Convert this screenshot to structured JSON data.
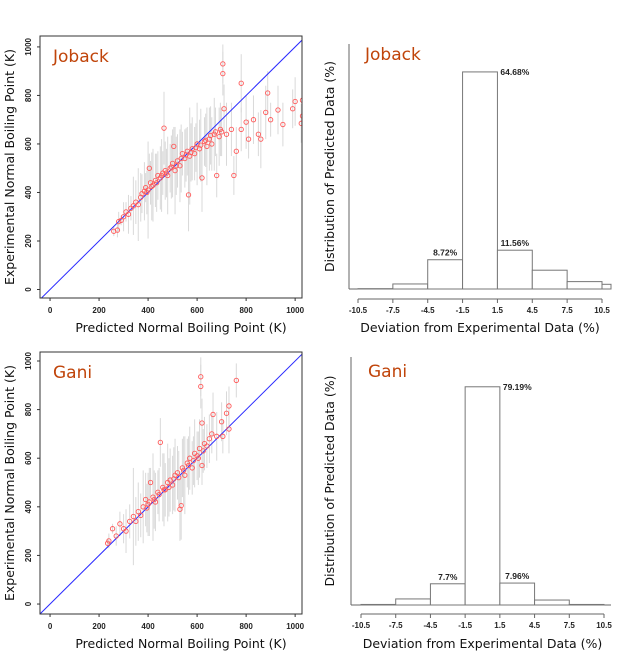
{
  "colors": {
    "title": "#c0440a",
    "point": "#ff5a5a",
    "errorbar": "#d9d9d9",
    "diagonal": "#2a2aff",
    "bar_stroke": "#777777",
    "axis": "#666666"
  },
  "chart_data": [
    {
      "type": "scatter",
      "title": "Joback",
      "xlabel": "Predicted Normal Boiling Point (K)",
      "ylabel": "Experimental Normal Boiling Point (K)",
      "xlim": [
        -41,
        1028
      ],
      "ylim": [
        -35,
        1045
      ],
      "xticks": [
        "0",
        "200",
        "400",
        "600",
        "800",
        "1000"
      ],
      "yticks": [
        "0",
        "200",
        "400",
        "600",
        "800",
        "1000"
      ],
      "reference_line": "y = x",
      "point_format": [
        "predicted",
        "experimental",
        "error"
      ],
      "points": [
        [
          260,
          240,
          20
        ],
        [
          275,
          245,
          30
        ],
        [
          280,
          280,
          40
        ],
        [
          290,
          285,
          20
        ],
        [
          300,
          300,
          60
        ],
        [
          310,
          320,
          40
        ],
        [
          320,
          310,
          80
        ],
        [
          330,
          335,
          50
        ],
        [
          340,
          345,
          120
        ],
        [
          350,
          360,
          90
        ],
        [
          360,
          350,
          150
        ],
        [
          370,
          380,
          100
        ],
        [
          375,
          395,
          80
        ],
        [
          385,
          405,
          120
        ],
        [
          390,
          420,
          60
        ],
        [
          400,
          410,
          200
        ],
        [
          405,
          500,
          60
        ],
        [
          410,
          440,
          90
        ],
        [
          420,
          430,
          150
        ],
        [
          430,
          450,
          110
        ],
        [
          440,
          470,
          100
        ],
        [
          450,
          460,
          130
        ],
        [
          460,
          480,
          90
        ],
        [
          465,
          665,
          150
        ],
        [
          470,
          490,
          120
        ],
        [
          480,
          470,
          160
        ],
        [
          490,
          500,
          100
        ],
        [
          500,
          520,
          140
        ],
        [
          505,
          590,
          80
        ],
        [
          510,
          490,
          180
        ],
        [
          520,
          530,
          110
        ],
        [
          530,
          510,
          150
        ],
        [
          540,
          560,
          90
        ],
        [
          550,
          540,
          120
        ],
        [
          560,
          570,
          100
        ],
        [
          565,
          390,
          150
        ],
        [
          570,
          550,
          200
        ],
        [
          580,
          580,
          130
        ],
        [
          590,
          560,
          110
        ],
        [
          600,
          600,
          170
        ],
        [
          610,
          580,
          120
        ],
        [
          620,
          460,
          140
        ],
        [
          630,
          610,
          100
        ],
        [
          640,
          590,
          160
        ],
        [
          650,
          620,
          130
        ],
        [
          660,
          600,
          110
        ],
        [
          670,
          640,
          150
        ],
        [
          680,
          470,
          90
        ],
        [
          690,
          630,
          120
        ],
        [
          700,
          650,
          100
        ],
        [
          705,
          930,
          80
        ],
        [
          705,
          890,
          90
        ],
        [
          710,
          745,
          100
        ],
        [
          720,
          640,
          130
        ],
        [
          740,
          660,
          110
        ],
        [
          750,
          470,
          80
        ],
        [
          760,
          570,
          100
        ],
        [
          780,
          850,
          120
        ],
        [
          780,
          660,
          90
        ],
        [
          800,
          690,
          110
        ],
        [
          810,
          620,
          80
        ],
        [
          830,
          700,
          100
        ],
        [
          850,
          640,
          90
        ],
        [
          860,
          620,
          120
        ],
        [
          880,
          730,
          110
        ],
        [
          888,
          810,
          90
        ],
        [
          900,
          700,
          70
        ],
        [
          930,
          740,
          100
        ],
        [
          950,
          680,
          90
        ],
        [
          990,
          745,
          80
        ],
        [
          1000,
          775,
          100
        ],
        [
          1030,
          780,
          90
        ],
        [
          1030,
          715,
          120
        ],
        [
          1025,
          685,
          80
        ],
        [
          395,
          400,
          90
        ],
        [
          415,
          425,
          140
        ],
        [
          435,
          440,
          120
        ],
        [
          455,
          470,
          150
        ],
        [
          475,
          480,
          100
        ],
        [
          495,
          505,
          130
        ],
        [
          515,
          510,
          120
        ],
        [
          535,
          540,
          140
        ],
        [
          555,
          555,
          110
        ],
        [
          575,
          565,
          120
        ],
        [
          595,
          585,
          100
        ],
        [
          615,
          595,
          150
        ],
        [
          635,
          615,
          110
        ],
        [
          655,
          635,
          120
        ],
        [
          675,
          650,
          100
        ],
        [
          695,
          660,
          110
        ]
      ]
    },
    {
      "type": "bar",
      "title": "Joback",
      "xlabel": "Deviation from Experimental Data (%)",
      "ylabel": "Distribution of Predicted Data (%)",
      "xticks": [
        "-10.5",
        "-7.5",
        "-4.5",
        "-1.5",
        "1.5",
        "4.5",
        "7.5",
        "10.5"
      ],
      "xlim": [
        -10.5,
        11.3
      ],
      "ylim": [
        0,
        73
      ],
      "bins": [
        [
          -10.5,
          -7.5
        ],
        [
          -7.5,
          -4.5
        ],
        [
          -4.5,
          -1.5
        ],
        [
          -1.5,
          1.5
        ],
        [
          1.5,
          4.5
        ],
        [
          4.5,
          7.5
        ],
        [
          7.5,
          10.5
        ],
        [
          10.5,
          13.5
        ]
      ],
      "values": [
        0.1,
        1.5,
        8.72,
        64.68,
        11.56,
        5.6,
        2.2,
        1.4
      ],
      "data_labels": [
        {
          "bin": 2,
          "text": "8.72%",
          "pos": "top"
        },
        {
          "bin": 3,
          "text": "64.68%",
          "pos": "right"
        },
        {
          "bin": 4,
          "text": "11.56%",
          "pos": "top"
        }
      ]
    },
    {
      "type": "scatter",
      "title": "Gani",
      "xlabel": "Predicted Normal Boiling Point (K)",
      "ylabel": "Experimental Normal Boiling Point (K)",
      "xlim": [
        -41,
        1028
      ],
      "ylim": [
        -41,
        1037
      ],
      "xticks": [
        "0",
        "200",
        "400",
        "600",
        "800",
        "1000"
      ],
      "yticks": [
        "0",
        "200",
        "400",
        "600",
        "800",
        "1000"
      ],
      "reference_line": "y = x",
      "point_format": [
        "predicted",
        "experimental",
        "error"
      ],
      "points": [
        [
          235,
          250,
          20
        ],
        [
          240,
          260,
          30
        ],
        [
          255,
          310,
          20
        ],
        [
          270,
          280,
          40
        ],
        [
          285,
          330,
          50
        ],
        [
          300,
          310,
          60
        ],
        [
          310,
          300,
          90
        ],
        [
          325,
          340,
          70
        ],
        [
          340,
          360,
          200
        ],
        [
          350,
          340,
          100
        ],
        [
          360,
          380,
          120
        ],
        [
          370,
          365,
          90
        ],
        [
          380,
          400,
          150
        ],
        [
          390,
          430,
          110
        ],
        [
          400,
          410,
          130
        ],
        [
          410,
          500,
          60
        ],
        [
          420,
          440,
          180
        ],
        [
          430,
          420,
          120
        ],
        [
          440,
          460,
          90
        ],
        [
          450,
          665,
          100
        ],
        [
          460,
          480,
          140
        ],
        [
          470,
          470,
          110
        ],
        [
          480,
          500,
          160
        ],
        [
          490,
          510,
          130
        ],
        [
          500,
          490,
          120
        ],
        [
          510,
          530,
          150
        ],
        [
          520,
          540,
          110
        ],
        [
          530,
          390,
          130
        ],
        [
          535,
          405,
          140
        ],
        [
          540,
          560,
          120
        ],
        [
          550,
          530,
          160
        ],
        [
          560,
          580,
          100
        ],
        [
          570,
          600,
          130
        ],
        [
          580,
          560,
          110
        ],
        [
          590,
          620,
          140
        ],
        [
          600,
          610,
          100
        ],
        [
          610,
          640,
          120
        ],
        [
          615,
          935,
          80
        ],
        [
          615,
          895,
          90
        ],
        [
          620,
          745,
          100
        ],
        [
          620,
          570,
          80
        ],
        [
          630,
          660,
          110
        ],
        [
          640,
          650,
          90
        ],
        [
          650,
          680,
          100
        ],
        [
          660,
          700,
          80
        ],
        [
          665,
          780,
          90
        ],
        [
          680,
          690,
          100
        ],
        [
          700,
          750,
          80
        ],
        [
          705,
          690,
          70
        ],
        [
          720,
          785,
          90
        ],
        [
          730,
          720,
          100
        ],
        [
          730,
          815,
          80
        ],
        [
          760,
          920,
          70
        ],
        [
          395,
          395,
          100
        ],
        [
          405,
          420,
          140
        ],
        [
          425,
          430,
          120
        ],
        [
          445,
          450,
          110
        ],
        [
          465,
          470,
          150
        ],
        [
          485,
          480,
          120
        ],
        [
          505,
          515,
          130
        ],
        [
          525,
          520,
          110
        ],
        [
          545,
          550,
          140
        ],
        [
          565,
          570,
          120
        ],
        [
          585,
          590,
          100
        ],
        [
          605,
          600,
          110
        ],
        [
          625,
          630,
          90
        ]
      ]
    },
    {
      "type": "bar",
      "title": "Gani",
      "xlabel": "Deviation from Experimental Data (%)",
      "ylabel": "Distribution of Predicted Data (%)",
      "xticks": [
        "-10.5",
        "-7.5",
        "-4.5",
        "-1.5",
        "1.5",
        "4.5",
        "7.5",
        "10.5"
      ],
      "xlim": [
        -10.5,
        10.5
      ],
      "ylim": [
        0,
        90
      ],
      "bins": [
        [
          -10.5,
          -7.5
        ],
        [
          -7.5,
          -4.5
        ],
        [
          -4.5,
          -1.5
        ],
        [
          -1.5,
          1.5
        ],
        [
          1.5,
          4.5
        ],
        [
          4.5,
          7.5
        ],
        [
          7.5,
          10.5
        ]
      ],
      "values": [
        0.2,
        2.2,
        7.7,
        79.19,
        7.96,
        1.8,
        0.2
      ],
      "data_labels": [
        {
          "bin": 2,
          "text": "7.7%",
          "pos": "top"
        },
        {
          "bin": 3,
          "text": "79.19%",
          "pos": "right"
        },
        {
          "bin": 4,
          "text": "7.96%",
          "pos": "top"
        }
      ]
    }
  ]
}
